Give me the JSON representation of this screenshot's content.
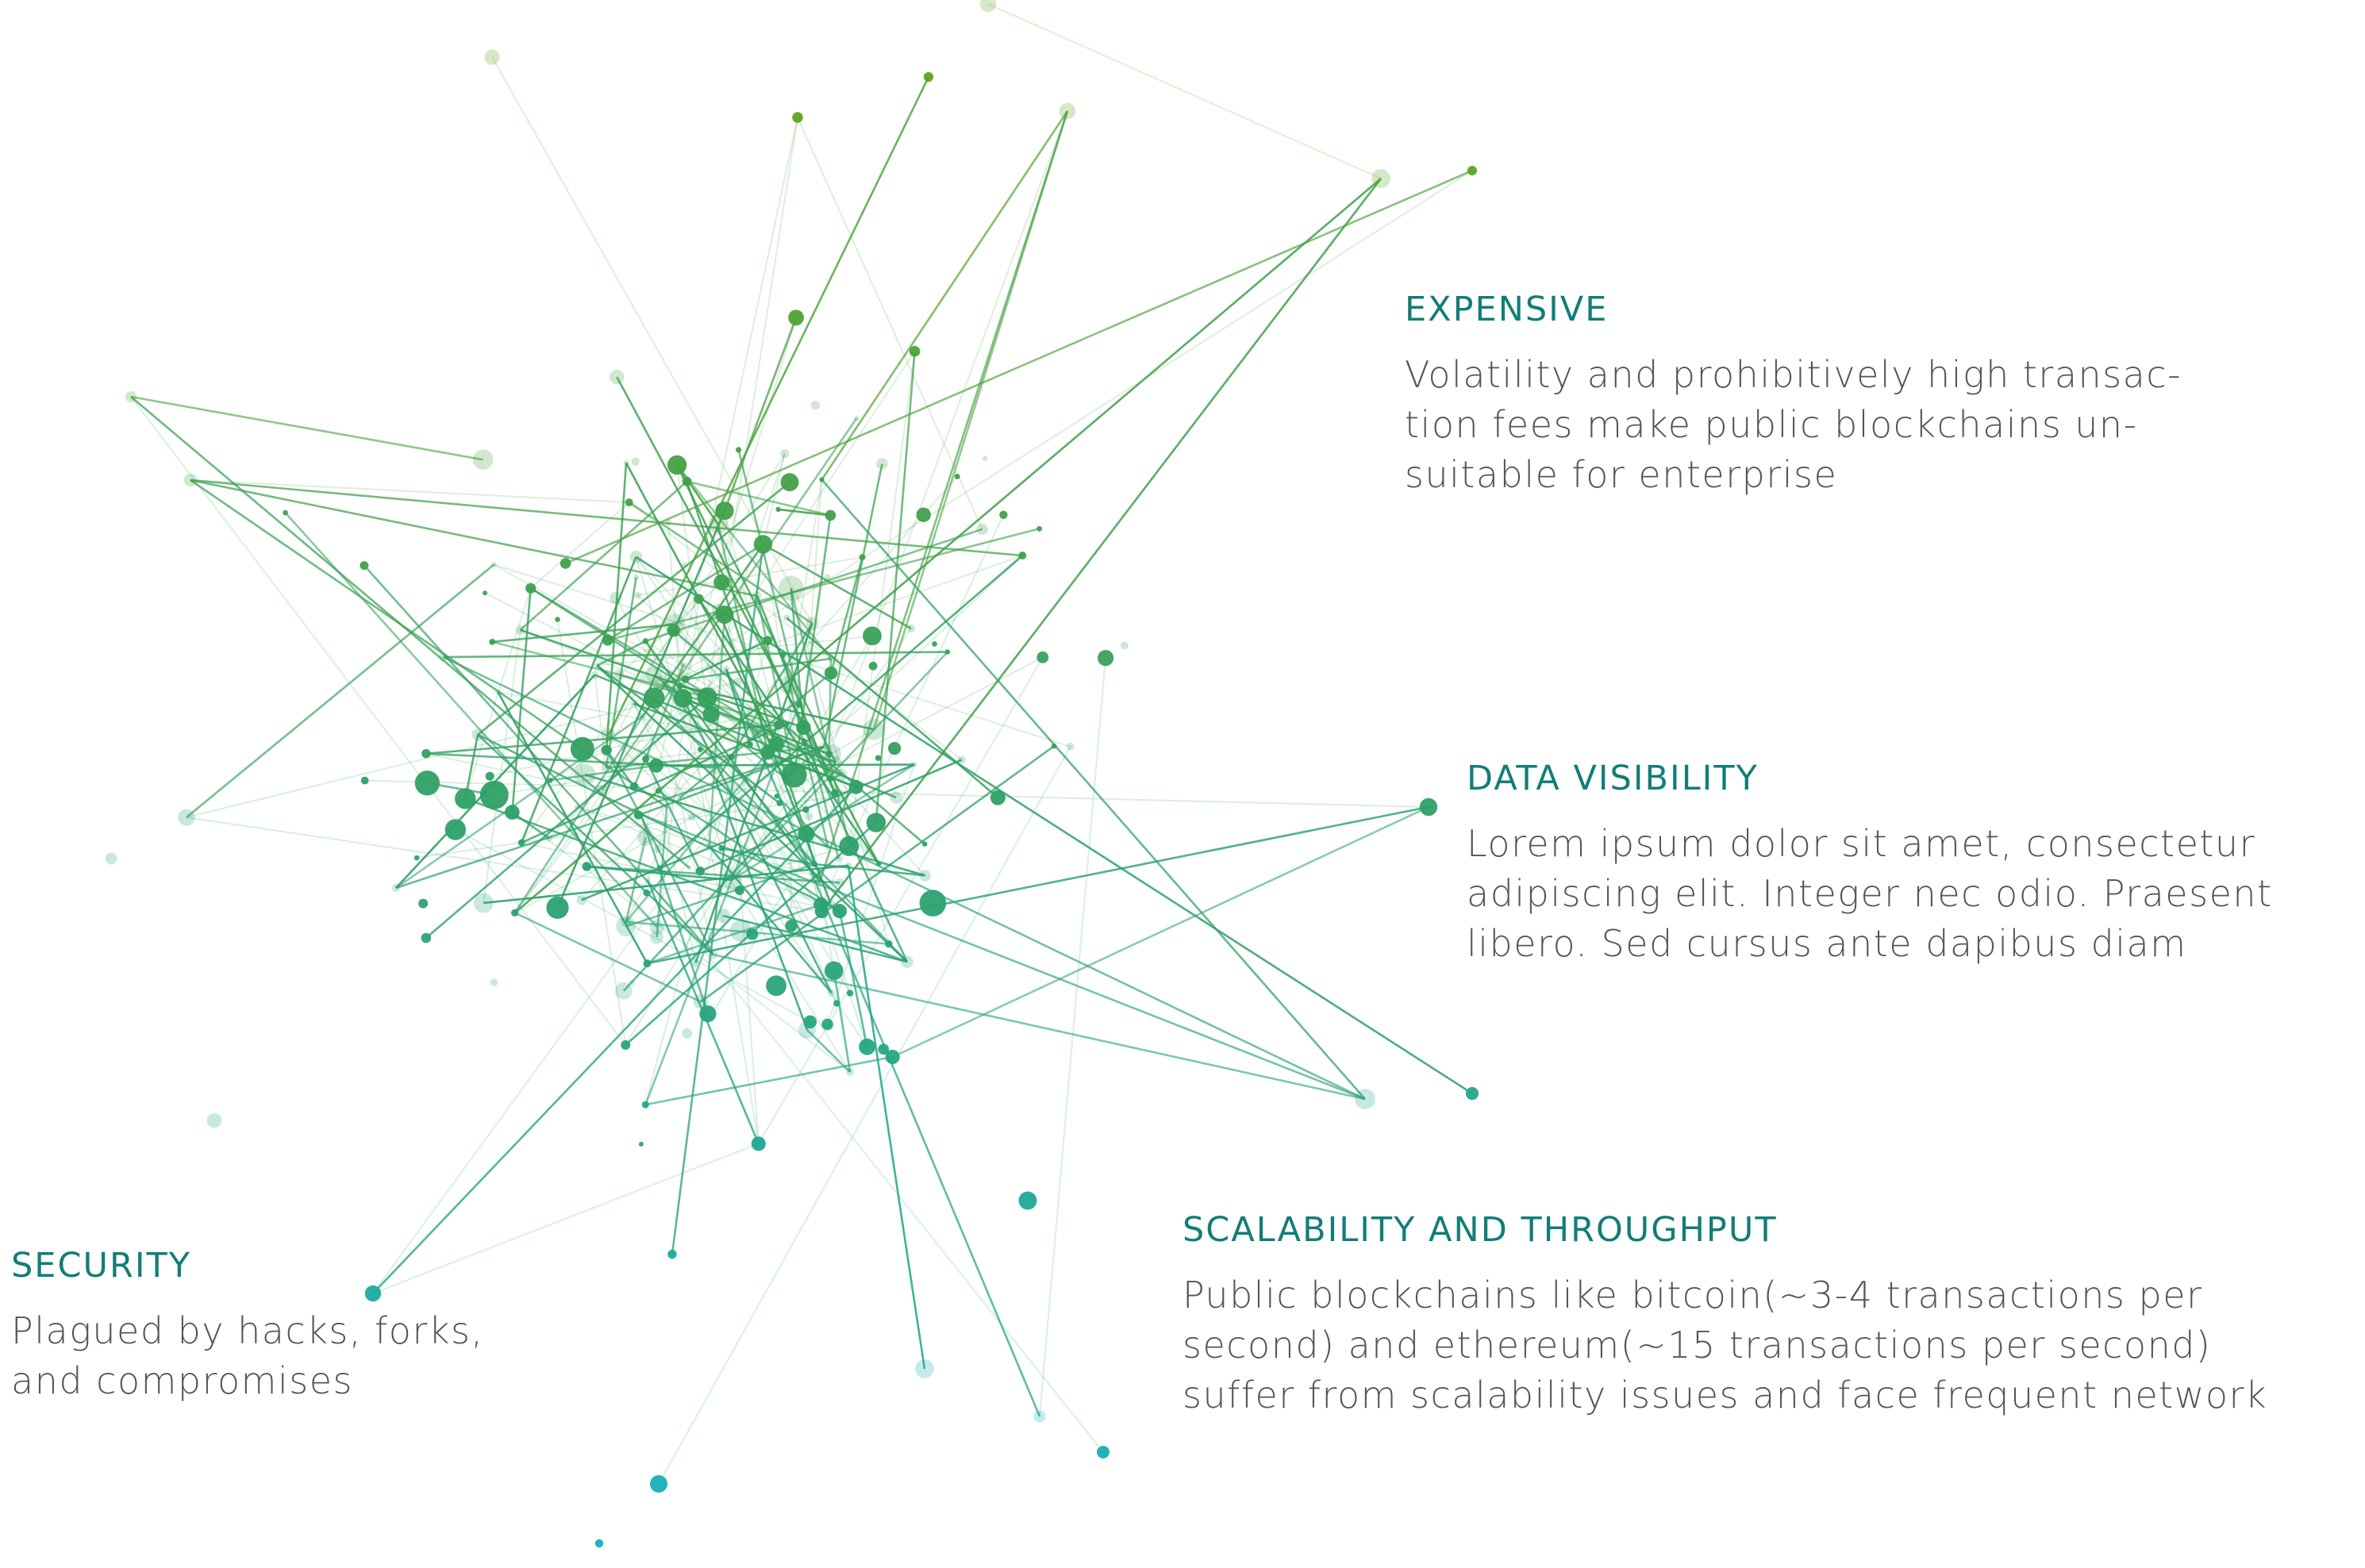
{
  "diagram": {
    "gradient": {
      "top": "#5ea31c",
      "middle": "#2fa068",
      "bottom": "#15b0bd"
    }
  },
  "callouts": {
    "expensive": {
      "title": "EXPENSIVE",
      "lines": [
        "Volatility and prohibitively high transac-",
        "tion fees make public blockchains un-",
        "suitable for enterprise"
      ]
    },
    "data_visibility": {
      "title": "DATA VISIBILITY",
      "lines": [
        "Lorem ipsum dolor sit amet, consectetur",
        "adipiscing elit. Integer nec odio. Praesent",
        "libero. Sed cursus ante dapibus diam"
      ]
    },
    "scalability": {
      "title": "SCALABILITY AND THROUGHPUT",
      "lines": [
        "Public blockchains like bitcoin(~3-4 transactions per",
        "second) and ethereum(~15 transactions per second)",
        "suffer from scalability issues and face frequent network"
      ]
    },
    "security": {
      "title": "SECURITY",
      "lines": [
        "Plagued by hacks, forks,",
        "and compromises"
      ]
    }
  }
}
